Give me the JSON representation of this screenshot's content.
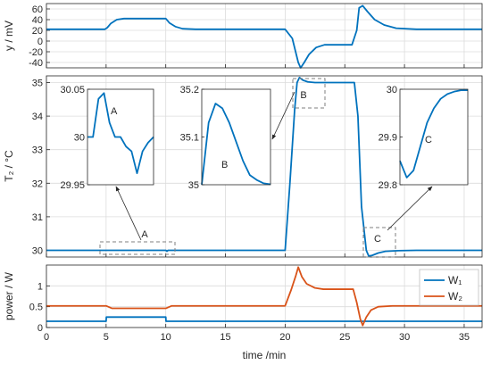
{
  "chart_data": [
    {
      "type": "line",
      "ylabel": "y / mV",
      "xlim": [
        0,
        36.5
      ],
      "ylim": [
        -50,
        70
      ],
      "xticks": [
        0,
        5,
        10,
        15,
        20,
        25,
        30,
        35
      ],
      "yticks": [
        60,
        40,
        20,
        0,
        -20,
        -40
      ],
      "grid": true,
      "series": [
        {
          "color": "#0072BD",
          "x": [
            0,
            4.9,
            5.1,
            5.4,
            5.9,
            6.5,
            10,
            10.3,
            10.8,
            11.4,
            12.5,
            20,
            20.6,
            21.1,
            21.3,
            21.6,
            22,
            22.6,
            23.3,
            25.6,
            26,
            26.2,
            26.5,
            26.9,
            27.5,
            28.3,
            29.3,
            31,
            36.5
          ],
          "y": [
            22,
            22,
            25,
            33,
            40,
            42,
            42,
            34,
            27,
            23,
            22,
            22,
            5,
            -40,
            -50,
            -40,
            -25,
            -12,
            -7,
            -7,
            20,
            62,
            66,
            55,
            40,
            30,
            24,
            22,
            22
          ]
        }
      ]
    },
    {
      "type": "line",
      "xlabel": "",
      "ylabel": "T₂ / °C",
      "xlim": [
        0,
        36.5
      ],
      "ylim": [
        29.8,
        35.2
      ],
      "xticks": [
        0,
        5,
        10,
        15,
        20,
        25,
        30,
        35
      ],
      "yticks": [
        35,
        34,
        33,
        32,
        31,
        30
      ],
      "grid": true,
      "series": [
        {
          "color": "#0072BD",
          "x": [
            0,
            5,
            10,
            10.1,
            10.2,
            20,
            20.4,
            20.8,
            21.0,
            21.2,
            21.5,
            21.9,
            22.5,
            25.8,
            26.1,
            26.4,
            26.8,
            27.0,
            27.3,
            27.8,
            28.4,
            29.5,
            31,
            36.5
          ],
          "y": [
            30,
            30,
            30,
            29.97,
            30,
            30,
            32,
            34.2,
            35.0,
            35.15,
            35.07,
            35.02,
            35,
            35,
            34,
            31.3,
            30,
            29.83,
            29.85,
            29.92,
            29.97,
            29.99,
            30,
            30
          ]
        }
      ],
      "annotations": [
        "A",
        "B",
        "C"
      ],
      "insets": [
        {
          "label": "A",
          "ylim": [
            29.95,
            30.05
          ],
          "yticks": [
            "30.05",
            "30",
            "29.95"
          ],
          "y": [
            30,
            30,
            30.04,
            30.046,
            30.015,
            30,
            30,
            29.99,
            29.985,
            29.962,
            29.985,
            29.994,
            30
          ]
        },
        {
          "label": "B",
          "ylim": [
            35,
            35.2
          ],
          "yticks": [
            "35.2",
            "35.1",
            "35"
          ],
          "y": [
            35,
            35.13,
            35.17,
            35.16,
            35.13,
            35.09,
            35.05,
            35.02,
            35.01,
            35.003,
            35.001
          ]
        },
        {
          "label": "C",
          "ylim": [
            29.8,
            30
          ],
          "yticks": [
            "30",
            "29.9",
            "29.8"
          ],
          "y": [
            29.85,
            29.815,
            29.83,
            29.88,
            29.93,
            29.96,
            29.98,
            29.99,
            29.995,
            29.998,
            29.998
          ]
        }
      ]
    },
    {
      "type": "line",
      "xlabel": "time /min",
      "ylabel": "power / W",
      "xlim": [
        0,
        36.5
      ],
      "ylim": [
        0,
        1.5
      ],
      "xticks": [
        0,
        5,
        10,
        15,
        20,
        25,
        30,
        35
      ],
      "yticks": [
        1,
        0.5,
        0
      ],
      "grid": true,
      "legend": "top-right",
      "series": [
        {
          "name": "W₁",
          "color": "#0072BD",
          "x": [
            0,
            5,
            5.02,
            10,
            10.02,
            36.5
          ],
          "y": [
            0.15,
            0.15,
            0.25,
            0.25,
            0.15,
            0.15
          ]
        },
        {
          "name": "W₂",
          "color": "#D95319",
          "x": [
            0,
            5,
            5.5,
            10,
            10.5,
            20,
            20.5,
            20.9,
            21.1,
            21.4,
            21.8,
            22.5,
            23.2,
            25.7,
            26,
            26.3,
            26.5,
            26.8,
            27.2,
            27.8,
            29,
            36.5
          ],
          "y": [
            0.52,
            0.52,
            0.46,
            0.46,
            0.52,
            0.52,
            0.9,
            1.25,
            1.45,
            1.22,
            1.05,
            0.95,
            0.92,
            0.92,
            0.6,
            0.2,
            0.05,
            0.25,
            0.42,
            0.5,
            0.52,
            0.52
          ]
        }
      ]
    }
  ]
}
